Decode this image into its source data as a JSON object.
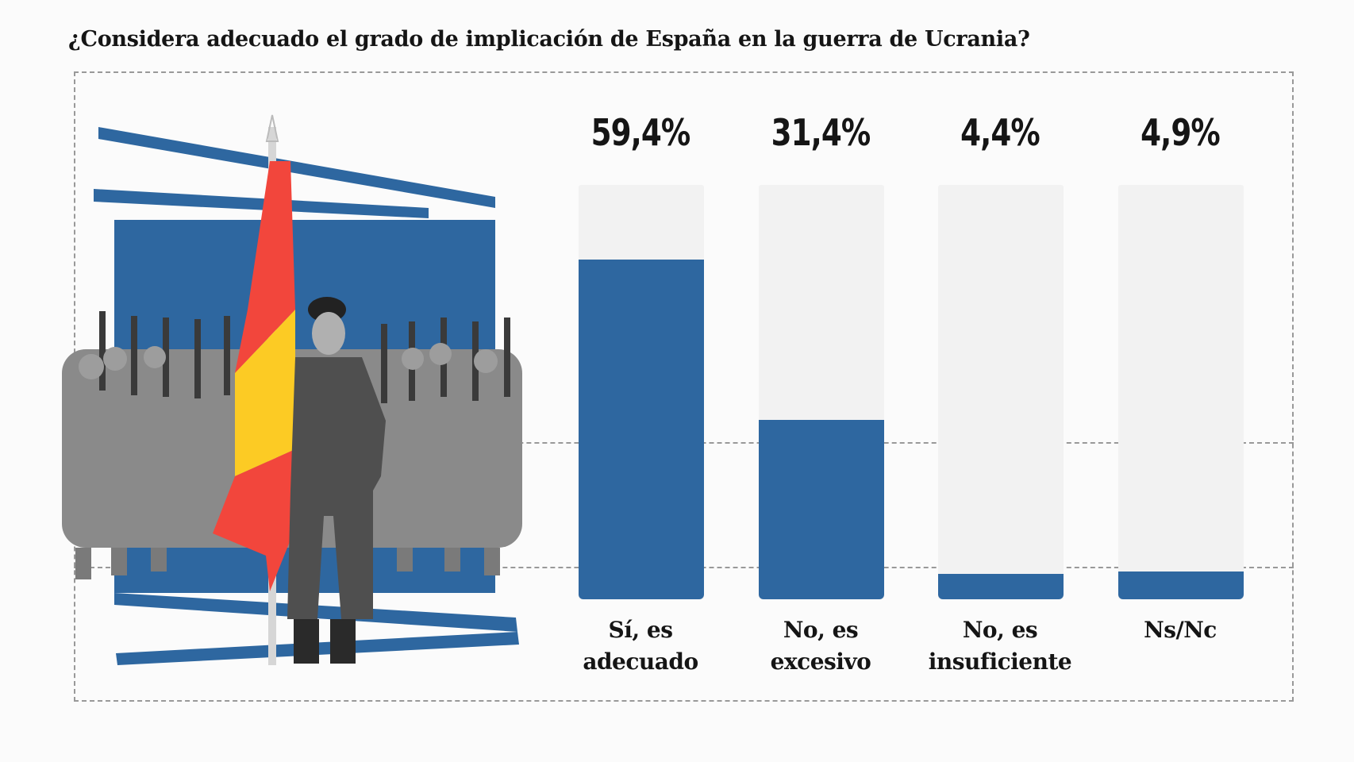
{
  "title": "¿Considera adecuado el grado de implicación de España en la guerra de Ucrania?",
  "colors": {
    "bar_fill": "#2e67a0",
    "bar_track": "#f2f2f2",
    "text": "#151515",
    "flag_red": "#f2463c",
    "flag_yellow": "#fccb24"
  },
  "illustration": {
    "description": "Collage: Spanish flag on pole with marching soldiers over blue abstract strokes"
  },
  "chart_data": {
    "type": "bar",
    "title": "¿Considera adecuado el grado de implicación de España en la guerra de Ucrania?",
    "categories": [
      "Sí, es adecuado",
      "No, es excesivo",
      "No, es insuficiente",
      "Ns/Nc"
    ],
    "category_lines": [
      [
        "Sí, es",
        "adecuado"
      ],
      [
        "No, es",
        "excesivo"
      ],
      [
        "No, es",
        "insuficiente"
      ],
      [
        "Ns/Nc",
        ""
      ]
    ],
    "values": [
      59.4,
      31.4,
      4.4,
      4.9
    ],
    "labels": [
      "59,4%",
      "31,4%",
      "4,4%",
      "4,9%"
    ],
    "unit": "%",
    "ylim": [
      0,
      100
    ],
    "xlabel": "",
    "ylabel": "",
    "grid": true,
    "legend": "none"
  }
}
